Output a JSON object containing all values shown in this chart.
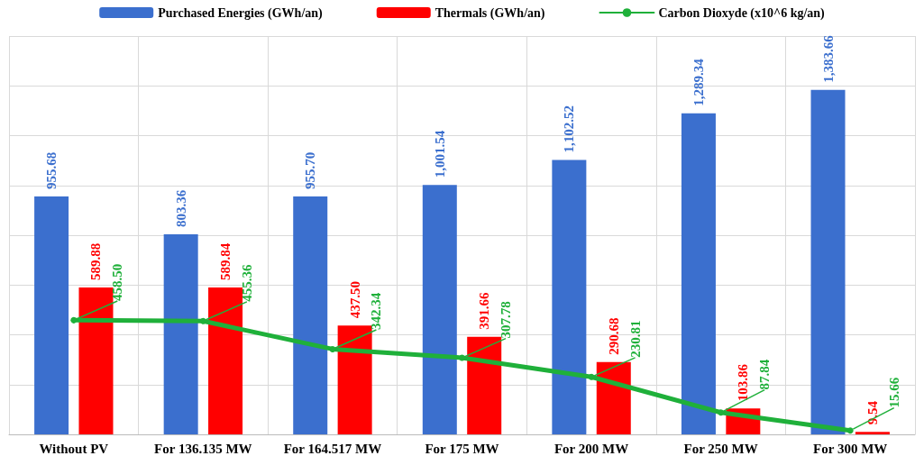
{
  "chart_data": {
    "type": "bar",
    "categories": [
      "Without PV",
      "For 136.135 MW",
      "For 164.517 MW",
      "For 175 MW",
      "For 200 MW",
      "For 250 MW",
      "For 300 MW"
    ],
    "series": [
      {
        "name": "Purchased Energies (GWh/an)",
        "color": "#3b6fce",
        "values": [
          955.68,
          803.36,
          955.7,
          1001.54,
          1102.52,
          1289.34,
          1383.66
        ],
        "value_labels": [
          "955.68",
          "803.36",
          "955.70",
          "1,001.54",
          "1,102.52",
          "1,289.34",
          "1,383.66"
        ]
      },
      {
        "name": "Thermals (GWh/an)",
        "color": "#ff0000",
        "values": [
          589.88,
          589.84,
          437.5,
          391.66,
          290.68,
          103.86,
          9.54
        ],
        "value_labels": [
          "589.88",
          "589.84",
          "437.50",
          "391.66",
          "290.68",
          "103.86",
          "9.54"
        ]
      },
      {
        "name": "Carbon Dioxyde (x10^6 kg/an)",
        "type": "line",
        "color": "#1fb03a",
        "values": [
          458.5,
          455.36,
          342.34,
          307.78,
          230.81,
          87.84,
          15.66
        ],
        "value_labels": [
          "458.50",
          "455.36",
          "342.34",
          "307.78",
          "230.81",
          "87.84",
          "15.66"
        ],
        "marker": "circle",
        "line_style": "solid"
      }
    ],
    "ylim": [
      0,
      1600
    ],
    "yticks": [
      {
        "value": 0,
        "label": null
      },
      {
        "value": 200,
        "label": null
      },
      {
        "value": 400,
        "label": null
      },
      {
        "value": 600,
        "label": null
      },
      {
        "value": 800,
        "label": null
      },
      {
        "value": 1000,
        "label": null
      },
      {
        "value": 1200,
        "label": null
      },
      {
        "value": 1400,
        "label": null
      },
      {
        "value": 1600,
        "label": null
      }
    ],
    "grid": true,
    "legend": "top",
    "tick_labels": "x"
  }
}
